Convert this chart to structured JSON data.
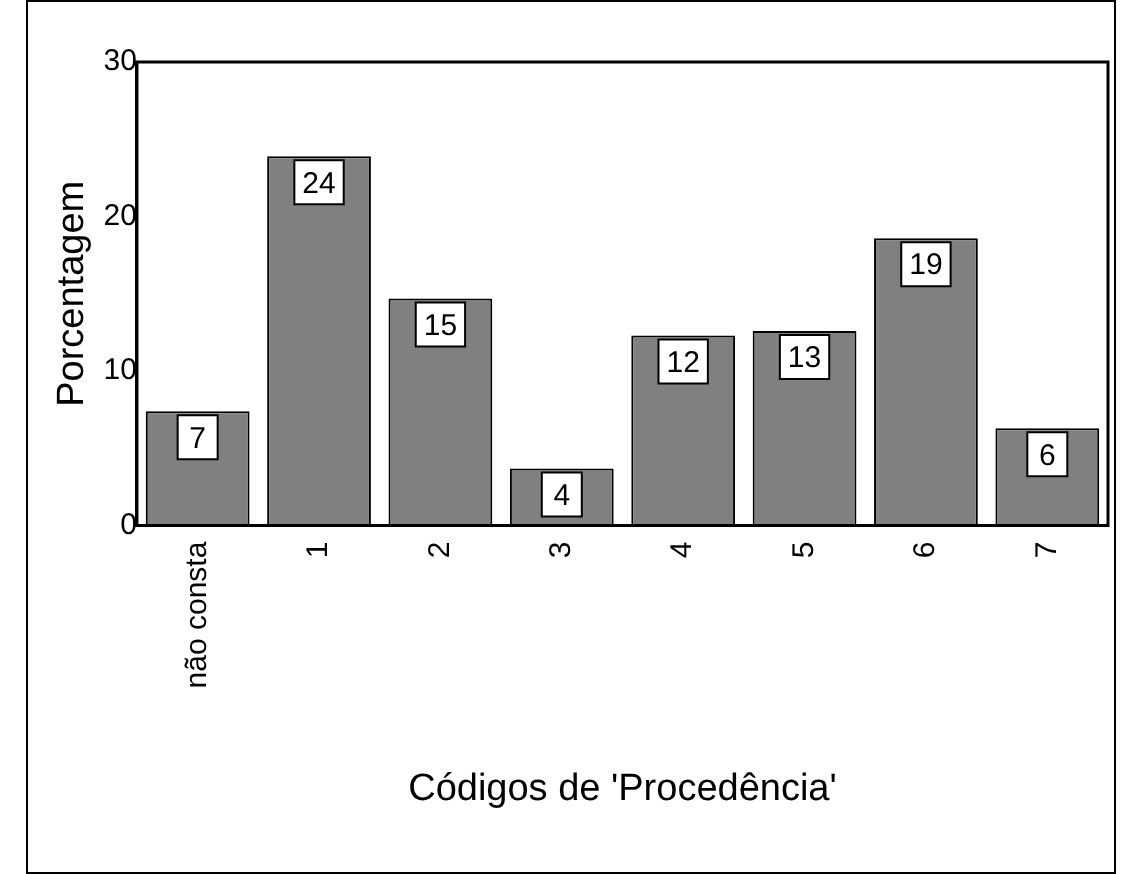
{
  "chart_data": {
    "type": "bar",
    "xlabel": "Códigos de 'Procedência'",
    "ylabel": "Porcentagem",
    "categories": [
      "não consta",
      "1",
      "2",
      "3",
      "4",
      "5",
      "6",
      "7"
    ],
    "values": [
      7.4,
      23.9,
      14.7,
      3.7,
      12.3,
      12.6,
      18.6,
      6.3
    ],
    "value_labels": [
      "7",
      "24",
      "15",
      "4",
      "12",
      "13",
      "19",
      "6"
    ],
    "color": "#808080",
    "ylim": [
      0,
      30
    ],
    "yticks": [
      0,
      10,
      20,
      30
    ],
    "grid": false,
    "legend": false
  }
}
